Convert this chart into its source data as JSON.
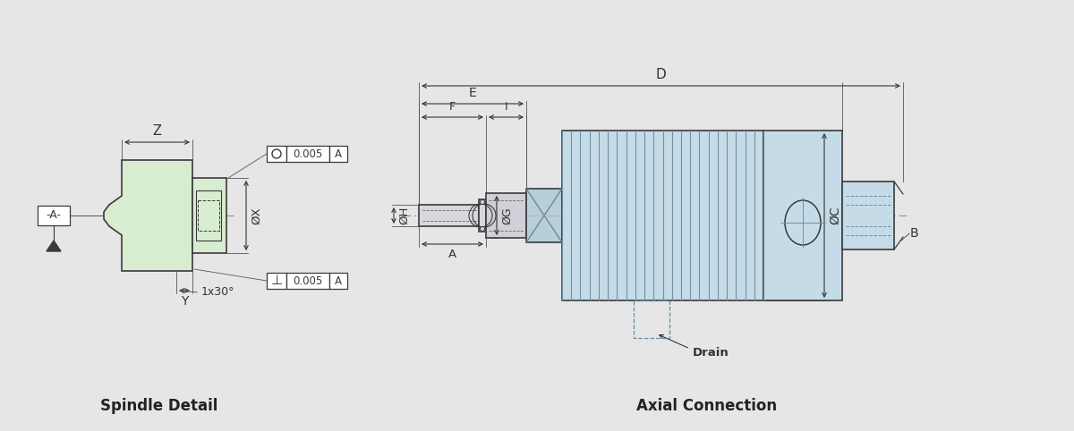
{
  "bg_color": "#e6e6e6",
  "line_color": "#3a3a3a",
  "fill_green": "#d8ecd0",
  "fill_blue": "#c5dce8",
  "fill_blue2": "#b8cfd8",
  "fill_gray": "#c8c8cc",
  "title_left": "Spindle Detail",
  "title_right": "Axial Connection",
  "labels": {
    "Z": "Z",
    "X": "ØX",
    "Y": "Y",
    "A_ref": "-A-",
    "tol1": "0.005",
    "tol2": "0.005",
    "chamfer": "1x30°",
    "D": "D",
    "E": "E",
    "F": "F",
    "I": "I",
    "H": "ØH",
    "A": "A",
    "G": "ØG",
    "C": "ØC",
    "B": "B",
    "Drain": "Drain"
  }
}
